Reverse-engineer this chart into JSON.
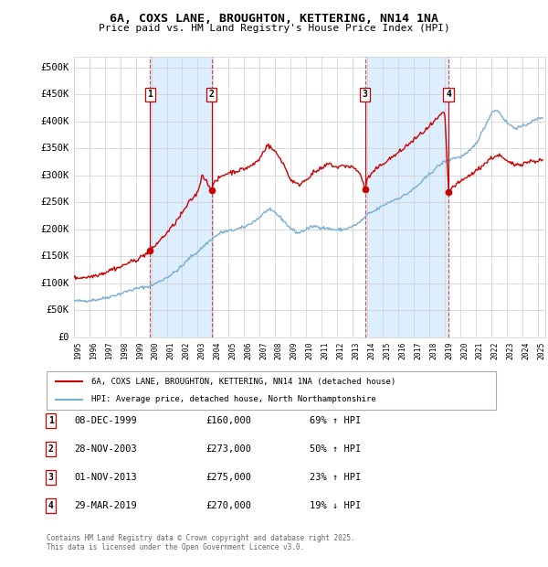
{
  "title": "6A, COXS LANE, BROUGHTON, KETTERING, NN14 1NA",
  "subtitle": "Price paid vs. HM Land Registry's House Price Index (HPI)",
  "ylabel_vals": [
    0,
    50000,
    100000,
    150000,
    200000,
    250000,
    300000,
    350000,
    400000,
    450000,
    500000
  ],
  "ylabel_labels": [
    "£0",
    "£50K",
    "£100K",
    "£150K",
    "£200K",
    "£250K",
    "£300K",
    "£350K",
    "£400K",
    "£450K",
    "£500K"
  ],
  "ylim": [
    0,
    520000
  ],
  "xlim_start": 1995.0,
  "xlim_end": 2025.5,
  "xtick_years": [
    1995,
    1996,
    1997,
    1998,
    1999,
    2000,
    2001,
    2002,
    2003,
    2004,
    2005,
    2006,
    2007,
    2008,
    2009,
    2010,
    2011,
    2012,
    2013,
    2014,
    2015,
    2016,
    2017,
    2018,
    2019,
    2020,
    2021,
    2022,
    2023,
    2024,
    2025
  ],
  "sale_dates": [
    1999.93,
    2003.91,
    2013.84,
    2019.24
  ],
  "sale_prices": [
    160000,
    273000,
    275000,
    270000
  ],
  "sale_labels": [
    "1",
    "2",
    "3",
    "4"
  ],
  "legend_red": "6A, COXS LANE, BROUGHTON, KETTERING, NN14 1NA (detached house)",
  "legend_blue": "HPI: Average price, detached house, North Northamptonshire",
  "table_rows": [
    [
      "1",
      "08-DEC-1999",
      "£160,000",
      "69% ↑ HPI"
    ],
    [
      "2",
      "28-NOV-2003",
      "£273,000",
      "50% ↑ HPI"
    ],
    [
      "3",
      "01-NOV-2013",
      "£275,000",
      "23% ↑ HPI"
    ],
    [
      "4",
      "29-MAR-2019",
      "£270,000",
      "19% ↓ HPI"
    ]
  ],
  "footer": "Contains HM Land Registry data © Crown copyright and database right 2025.\nThis data is licensed under the Open Government Licence v3.0.",
  "red_color": "#cc0000",
  "blue_color": "#7aadd4",
  "shade_color": "#ddeeff",
  "grid_color": "#cccccc",
  "bg_color": "#ffffff"
}
